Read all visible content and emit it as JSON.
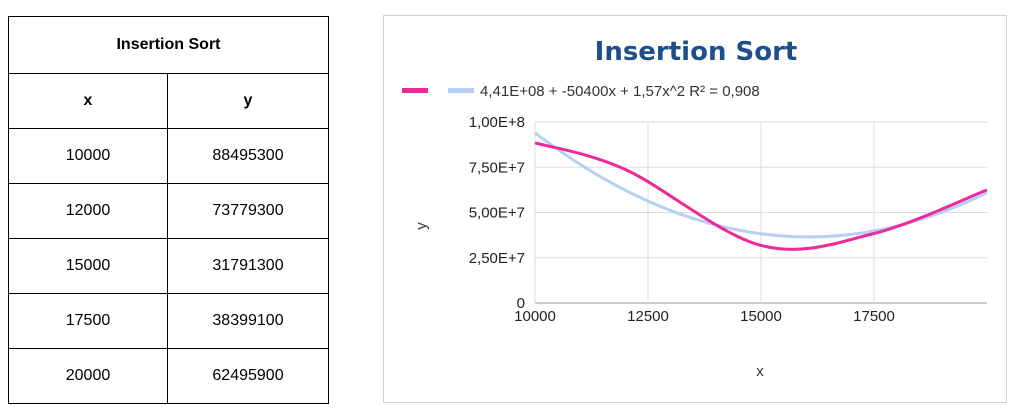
{
  "table": {
    "title": "Insertion Sort",
    "headers": [
      "x",
      "y"
    ],
    "rows": [
      [
        "10000",
        "88495300"
      ],
      [
        "12000",
        "73779300"
      ],
      [
        "15000",
        "31791300"
      ],
      [
        "17500",
        "38399100"
      ],
      [
        "20000",
        "62495900"
      ]
    ]
  },
  "chart_data": {
    "type": "line",
    "title": "Insertion Sort",
    "xlabel": "x",
    "ylabel": "y",
    "xlim": [
      10000,
      20000
    ],
    "ylim": [
      0,
      100000000
    ],
    "x_ticks": [
      10000,
      12500,
      15000,
      17500
    ],
    "x_tick_labels": [
      "10000",
      "12500",
      "15000",
      "17500"
    ],
    "y_ticks": [
      0,
      25000000,
      50000000,
      75000000,
      100000000
    ],
    "y_tick_labels": [
      "0",
      "2,50E+7",
      "5,00E+7",
      "7,50E+7",
      "1,00E+8"
    ],
    "grid": true,
    "legend_position": "top",
    "series": [
      {
        "x": [
          10000,
          12000,
          15000,
          17500,
          20000
        ],
        "values": [
          88495300,
          73779300,
          31791300,
          38399100,
          62495900
        ],
        "color": "#ee2a9a",
        "smooth": true
      }
    ],
    "trendline": {
      "name": "4,41E+08 + -50400x + 1,57x^2 R² = 0,908",
      "type": "polynomial",
      "coefficients": [
        441000000,
        -50400,
        1.57
      ],
      "r_squared": 0.908,
      "color": "#b7cff3"
    }
  },
  "colors": {
    "title": "#1f4e8c",
    "series": "#ee2a9a",
    "trendline": "#b7cff3",
    "grid": "#dddddd"
  }
}
